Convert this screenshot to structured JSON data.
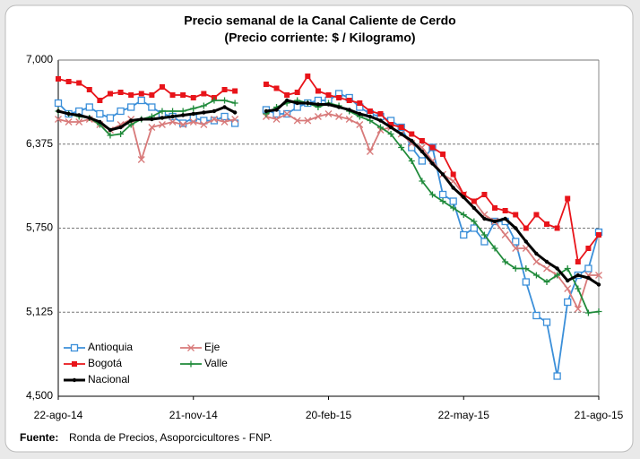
{
  "chart_data": {
    "type": "line",
    "title": "Precio semanal de la Canal Caliente de Cerdo",
    "subtitle": "(Precio corriente: $ / Kilogramo)",
    "source_label": "Fuente:",
    "source": "Ronda de Precios, Asoporcicultores - FNP.",
    "categories": [
      "22-ago-14",
      null,
      null,
      null,
      null,
      null,
      null,
      null,
      null,
      null,
      null,
      null,
      null,
      "21-nov-14",
      null,
      null,
      null,
      null,
      null,
      null,
      null,
      null,
      null,
      null,
      null,
      null,
      "20-feb-15",
      null,
      null,
      null,
      null,
      null,
      null,
      null,
      null,
      null,
      null,
      null,
      null,
      "22-may-15",
      null,
      null,
      null,
      null,
      null,
      null,
      null,
      null,
      null,
      null,
      null,
      null,
      "21-ago-15"
    ],
    "ylim": [
      4500,
      7000
    ],
    "yticks": [
      {
        "value": 4500,
        "label": "4,500"
      },
      {
        "value": 5125,
        "label": "5,125"
      },
      {
        "value": 5750,
        "label": "5,750"
      },
      {
        "value": 6375,
        "label": "6,375"
      },
      {
        "value": 7000,
        "label": "7,000"
      }
    ],
    "grid": true,
    "legend": "bottom-left",
    "series": [
      {
        "name": "Antioquia",
        "color": "#3b8fd9",
        "marker": "square-open",
        "values": [
          6680,
          6600,
          6620,
          6650,
          6600,
          6570,
          6620,
          6650,
          6700,
          6650,
          6600,
          6580,
          6530,
          6570,
          6550,
          6550,
          6580,
          6530,
          null,
          null,
          6630,
          6600,
          6600,
          6650,
          6680,
          6700,
          6700,
          6750,
          6720,
          6650,
          6600,
          6580,
          6550,
          6500,
          6350,
          6250,
          6350,
          6000,
          5950,
          5700,
          5750,
          5650,
          5800,
          5800,
          5650,
          5350,
          5100,
          5050,
          4650,
          5200,
          5400,
          5450,
          5720
        ]
      },
      {
        "name": "Eje",
        "color": "#d87a7a",
        "marker": "x",
        "values": [
          6560,
          6540,
          6540,
          6560,
          6520,
          6480,
          6520,
          6560,
          6260,
          6500,
          6520,
          6540,
          6520,
          6540,
          6520,
          6560,
          6540,
          6560,
          null,
          null,
          6580,
          6560,
          6600,
          6550,
          6550,
          6580,
          6600,
          6580,
          6560,
          6520,
          6320,
          6480,
          6500,
          6450,
          6380,
          6350,
          6250,
          6150,
          6100,
          6000,
          5950,
          5850,
          5800,
          5700,
          5600,
          5600,
          5500,
          5450,
          5400,
          5300,
          5150,
          5400,
          5400
        ]
      },
      {
        "name": "Bogotá",
        "color": "#e8141a",
        "marker": "square",
        "values": [
          6860,
          6840,
          6830,
          6780,
          6700,
          6750,
          6760,
          6740,
          6750,
          6740,
          6800,
          6740,
          6740,
          6720,
          6750,
          6720,
          6780,
          6770,
          null,
          null,
          6820,
          6790,
          6740,
          6760,
          6880,
          6770,
          6740,
          6720,
          6700,
          6680,
          6620,
          6600,
          6520,
          6500,
          6450,
          6400,
          6350,
          6300,
          6150,
          6000,
          5950,
          6000,
          5900,
          5880,
          5850,
          5750,
          5850,
          5780,
          5750,
          5970,
          5500,
          5600,
          5700
        ]
      },
      {
        "name": "Valle",
        "color": "#1f8a3a",
        "marker": "plus",
        "values": [
          6620,
          6600,
          6580,
          6570,
          6520,
          6440,
          6450,
          6520,
          6560,
          6580,
          6620,
          6620,
          6620,
          6640,
          6660,
          6700,
          6700,
          6680,
          null,
          null,
          6600,
          6650,
          6680,
          6700,
          6680,
          6650,
          6680,
          6660,
          6620,
          6580,
          6550,
          6500,
          6450,
          6350,
          6250,
          6100,
          6000,
          5950,
          5900,
          5850,
          5800,
          5700,
          5600,
          5500,
          5450,
          5450,
          5400,
          5350,
          5400,
          5450,
          5300,
          5120,
          5130
        ]
      },
      {
        "name": "Nacional",
        "color": "#000000",
        "marker": "dot",
        "values": [
          6620,
          6600,
          6590,
          6570,
          6540,
          6480,
          6500,
          6550,
          6560,
          6560,
          6570,
          6580,
          6590,
          6600,
          6610,
          6620,
          6650,
          6610,
          null,
          null,
          6620,
          6630,
          6700,
          6680,
          6680,
          6670,
          6670,
          6650,
          6630,
          6600,
          6580,
          6550,
          6500,
          6450,
          6400,
          6320,
          6230,
          6150,
          6050,
          5980,
          5900,
          5820,
          5800,
          5820,
          5750,
          5650,
          5560,
          5500,
          5450,
          5360,
          5400,
          5380,
          5330
        ]
      }
    ]
  }
}
